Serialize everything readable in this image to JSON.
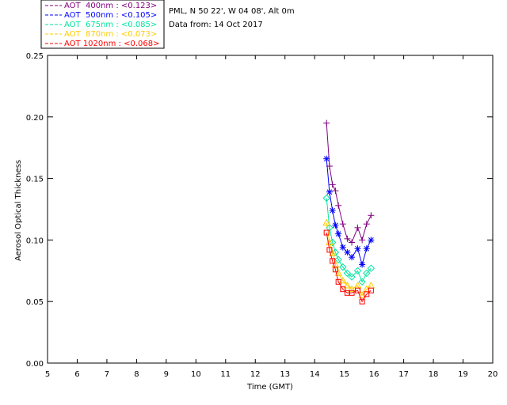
{
  "header": {
    "site_line": "PML, N 50 22', W 04 08', Alt 0m",
    "date_line": "Data from: 14 Oct 2017"
  },
  "chart_data": {
    "type": "line",
    "title": "",
    "xlabel": "Time (GMT)",
    "ylabel": "Aerosol Optical Thickness",
    "xlim": [
      5,
      20
    ],
    "ylim": [
      0,
      0.25
    ],
    "x_ticks": [
      5,
      6,
      7,
      8,
      9,
      10,
      11,
      12,
      13,
      14,
      15,
      16,
      17,
      18,
      19,
      20
    ],
    "y_ticks": [
      "0.00",
      "0.05",
      "0.10",
      "0.15",
      "0.20",
      "0.25"
    ],
    "legend_position": "top-left outside plot",
    "series": [
      {
        "name": "AOT  400nm : <0.123>",
        "color": "#800080",
        "marker": "plus",
        "x": [
          14.4,
          14.5,
          14.6,
          14.7,
          14.8,
          14.95,
          15.1,
          15.25,
          15.45,
          15.6,
          15.75,
          15.9
        ],
        "y": [
          0.195,
          0.16,
          0.145,
          0.14,
          0.128,
          0.113,
          0.101,
          0.098,
          0.11,
          0.1,
          0.113,
          0.12
        ]
      },
      {
        "name": "AOT  500nm : <0.105>",
        "color": "#0000ff",
        "marker": "asterisk",
        "x": [
          14.4,
          14.5,
          14.6,
          14.7,
          14.8,
          14.95,
          15.1,
          15.25,
          15.45,
          15.6,
          15.75,
          15.9
        ],
        "y": [
          0.166,
          0.139,
          0.124,
          0.112,
          0.105,
          0.094,
          0.09,
          0.086,
          0.093,
          0.08,
          0.093,
          0.1
        ]
      },
      {
        "name": "AOT  675nm : <0.085>",
        "color": "#00e5a0",
        "marker": "diamond",
        "x": [
          14.4,
          14.5,
          14.6,
          14.7,
          14.8,
          14.95,
          15.1,
          15.25,
          15.45,
          15.6,
          15.75,
          15.9
        ],
        "y": [
          0.134,
          0.11,
          0.098,
          0.09,
          0.084,
          0.078,
          0.073,
          0.07,
          0.075,
          0.066,
          0.073,
          0.077
        ]
      },
      {
        "name": "AOT  870nm : <0.073>",
        "color": "#ffcc00",
        "marker": "triangle",
        "x": [
          14.4,
          14.5,
          14.6,
          14.7,
          14.8,
          14.95,
          15.1,
          15.25,
          15.45,
          15.6,
          15.75,
          15.9
        ],
        "y": [
          0.114,
          0.098,
          0.089,
          0.08,
          0.073,
          0.067,
          0.063,
          0.06,
          0.063,
          0.055,
          0.06,
          0.063
        ]
      },
      {
        "name": "AOT 1020nm : <0.068>",
        "color": "#ff0000",
        "marker": "square",
        "x": [
          14.4,
          14.5,
          14.6,
          14.7,
          14.8,
          14.95,
          15.1,
          15.25,
          15.45,
          15.6,
          15.75,
          15.9
        ],
        "y": [
          0.106,
          0.092,
          0.083,
          0.076,
          0.066,
          0.06,
          0.057,
          0.057,
          0.059,
          0.05,
          0.056,
          0.059
        ]
      }
    ]
  }
}
